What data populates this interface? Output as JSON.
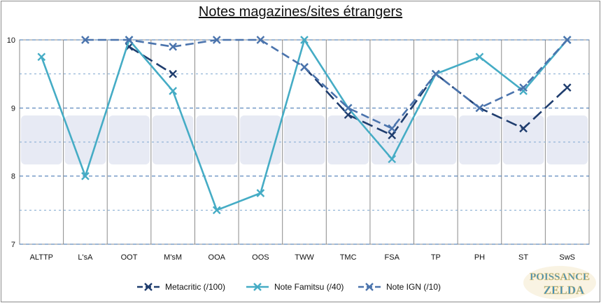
{
  "chart_data": {
    "type": "line",
    "title": "Notes magazines/sites étrangers",
    "categories": [
      "ALTTP",
      "L'sA",
      "OOT",
      "M'sM",
      "OOA",
      "OOS",
      "TWW",
      "TMC",
      "FSA",
      "TP",
      "PH",
      "ST",
      "SwS"
    ],
    "ylim": [
      7,
      10
    ],
    "yticks": [
      7,
      8,
      9,
      10
    ],
    "grid": true,
    "legend_position": "bottom",
    "series": [
      {
        "name": "Metacritic (/100)",
        "color": "#1f3d6e",
        "dash": "long-dash",
        "marker": "x",
        "values": [
          null,
          null,
          9.9,
          9.5,
          null,
          null,
          9.6,
          8.9,
          8.6,
          9.5,
          9.0,
          8.7,
          9.3
        ]
      },
      {
        "name": "Note Famitsu (/40)",
        "color": "#45acc5",
        "dash": "solid",
        "marker": "x",
        "values": [
          9.75,
          8.0,
          10.0,
          9.25,
          7.5,
          7.75,
          10.0,
          9.0,
          8.25,
          9.5,
          9.75,
          9.25,
          10.0
        ]
      },
      {
        "name": "Note IGN (/10)",
        "color": "#4b74ad",
        "dash": "dash",
        "marker": "x",
        "values": [
          null,
          10.0,
          10.0,
          9.9,
          10.0,
          10.0,
          9.6,
          9.0,
          8.7,
          9.5,
          9.0,
          9.3,
          10.0
        ]
      }
    ]
  },
  "watermark": {
    "text": "POISSANCE ZELDA"
  }
}
